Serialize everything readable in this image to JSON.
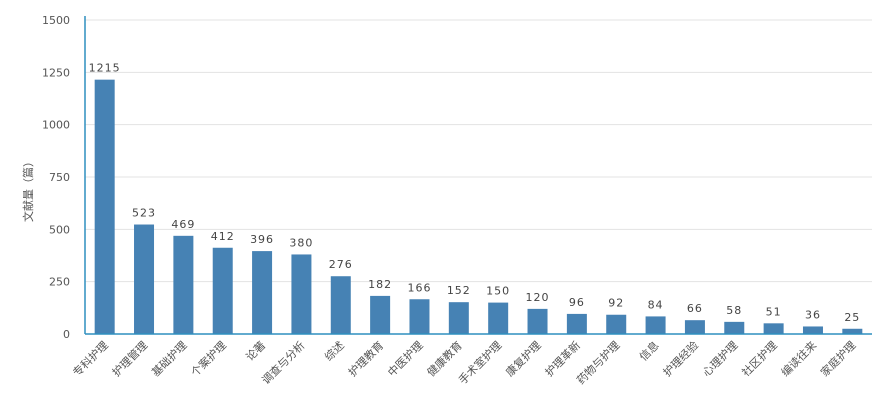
{
  "chart_data": {
    "type": "bar",
    "ylabel": "文献量（篇）",
    "xlabel": "",
    "ylim": [
      0,
      1500
    ],
    "yticks": [
      0,
      250,
      500,
      750,
      1000,
      1250,
      1500
    ],
    "grid": true,
    "bar_color": "#4682b4",
    "axis_color": "#2f8fbf",
    "grid_color": "#e3e3e3",
    "categories": [
      "专科护理",
      "护理管理",
      "基础护理",
      "个案护理",
      "论著",
      "调查与分析",
      "综述",
      "护理教育",
      "中医护理",
      "健康教育",
      "手术室护理",
      "康复护理",
      "护理革新",
      "药物与护理",
      "信息",
      "护理经验",
      "心理护理",
      "社区护理",
      "编读往来",
      "家庭护理"
    ],
    "values": [
      1215,
      523,
      469,
      412,
      396,
      380,
      276,
      182,
      166,
      152,
      150,
      120,
      96,
      92,
      84,
      66,
      58,
      51,
      36,
      25
    ]
  }
}
